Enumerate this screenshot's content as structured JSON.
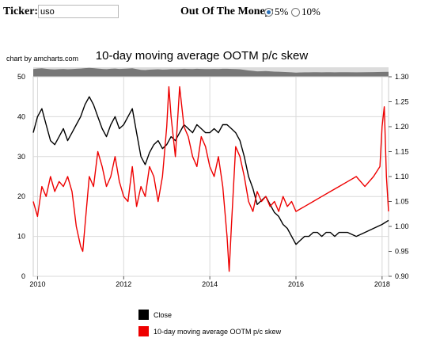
{
  "controls": {
    "ticker_label": "Ticker:",
    "ticker_value": "uso",
    "ootm_label": "Out Of The Money:",
    "options": [
      {
        "label": "5%",
        "selected": true
      },
      {
        "label": "10%",
        "selected": false
      }
    ]
  },
  "credit": "chart by amcharts.com",
  "chart_data": {
    "type": "line",
    "title": "10-day moving average OOTM p/c skew",
    "x_ticks": [
      "2010",
      "2012",
      "2014",
      "2016",
      "2018"
    ],
    "x_range": [
      2009.9,
      2018.15
    ],
    "y_left": {
      "ticks": [
        0,
        10,
        20,
        30,
        40,
        50
      ],
      "range": [
        0,
        50
      ]
    },
    "y_right": {
      "ticks": [
        0.9,
        0.95,
        1.0,
        1.05,
        1.1,
        1.15,
        1.2,
        1.25,
        1.3
      ],
      "range": [
        0.9,
        1.3
      ]
    },
    "grid": true,
    "legend_position": "bottom",
    "series": [
      {
        "name": "Close",
        "axis": "left",
        "color": "#000000",
        "x": [
          2009.9,
          2010.0,
          2010.1,
          2010.2,
          2010.3,
          2010.4,
          2010.5,
          2010.6,
          2010.7,
          2010.8,
          2010.9,
          2011.0,
          2011.1,
          2011.2,
          2011.3,
          2011.4,
          2011.5,
          2011.6,
          2011.7,
          2011.8,
          2011.9,
          2012.0,
          2012.1,
          2012.2,
          2012.3,
          2012.4,
          2012.5,
          2012.6,
          2012.7,
          2012.8,
          2012.9,
          2013.0,
          2013.1,
          2013.2,
          2013.3,
          2013.4,
          2013.5,
          2013.6,
          2013.7,
          2013.8,
          2013.9,
          2014.0,
          2014.1,
          2014.2,
          2014.3,
          2014.4,
          2014.5,
          2014.6,
          2014.7,
          2014.8,
          2014.9,
          2015.0,
          2015.1,
          2015.2,
          2015.3,
          2015.4,
          2015.5,
          2015.6,
          2015.7,
          2015.8,
          2015.9,
          2016.0,
          2016.1,
          2016.2,
          2016.3,
          2016.4,
          2016.5,
          2016.6,
          2016.7,
          2016.8,
          2016.9,
          2017.0,
          2017.2,
          2017.4,
          2017.6,
          2017.8,
          2018.0,
          2018.15
        ],
        "y": [
          36,
          40,
          42,
          38,
          34,
          33,
          35,
          37,
          34,
          36,
          38,
          40,
          43,
          45,
          43,
          40,
          37,
          35,
          38,
          40,
          37,
          38,
          40,
          42,
          36,
          30,
          28,
          31,
          33,
          34,
          32,
          33,
          35,
          34,
          36,
          38,
          37,
          36,
          38,
          37,
          36,
          36,
          37,
          36,
          38,
          38,
          37,
          36,
          34,
          30,
          25,
          22,
          18,
          19,
          20,
          18,
          16,
          15,
          13,
          12,
          10,
          8,
          9,
          10,
          10,
          11,
          11,
          10,
          11,
          11,
          10,
          11,
          11,
          10,
          11,
          12,
          13,
          14
        ]
      },
      {
        "name": "10-day moving average OOTM p/c skew",
        "axis": "right",
        "color": "#ee0000",
        "x": [
          2009.9,
          2010.0,
          2010.1,
          2010.2,
          2010.3,
          2010.4,
          2010.5,
          2010.6,
          2010.7,
          2010.8,
          2010.9,
          2011.0,
          2011.05,
          2011.1,
          2011.2,
          2011.3,
          2011.4,
          2011.5,
          2011.6,
          2011.7,
          2011.8,
          2011.9,
          2012.0,
          2012.1,
          2012.2,
          2012.3,
          2012.4,
          2012.5,
          2012.6,
          2012.7,
          2012.8,
          2012.9,
          2013.0,
          2013.05,
          2013.1,
          2013.2,
          2013.3,
          2013.4,
          2013.5,
          2013.6,
          2013.7,
          2013.8,
          2013.9,
          2014.0,
          2014.1,
          2014.2,
          2014.3,
          2014.4,
          2014.45,
          2014.5,
          2014.6,
          2014.7,
          2014.8,
          2014.9,
          2015.0,
          2015.1,
          2015.2,
          2015.3,
          2015.4,
          2015.5,
          2015.6,
          2015.7,
          2015.8,
          2015.9,
          2016.0,
          2016.2,
          2016.4,
          2016.6,
          2016.8,
          2017.0,
          2017.2,
          2017.4,
          2017.6,
          2017.8,
          2017.95,
          2018.0,
          2018.05,
          2018.1,
          2018.15
        ],
        "y": [
          1.05,
          1.02,
          1.08,
          1.06,
          1.1,
          1.07,
          1.09,
          1.08,
          1.1,
          1.07,
          1.0,
          0.96,
          0.95,
          1.0,
          1.1,
          1.08,
          1.15,
          1.12,
          1.08,
          1.1,
          1.14,
          1.09,
          1.06,
          1.05,
          1.12,
          1.04,
          1.08,
          1.06,
          1.12,
          1.1,
          1.05,
          1.1,
          1.2,
          1.28,
          1.22,
          1.14,
          1.28,
          1.2,
          1.18,
          1.14,
          1.12,
          1.18,
          1.16,
          1.12,
          1.1,
          1.14,
          1.08,
          0.98,
          0.91,
          1.0,
          1.16,
          1.14,
          1.1,
          1.05,
          1.03,
          1.07,
          1.05,
          1.06,
          1.04,
          1.05,
          1.03,
          1.06,
          1.04,
          1.05,
          1.03,
          1.04,
          1.05,
          1.06,
          1.07,
          1.08,
          1.09,
          1.1,
          1.08,
          1.1,
          1.12,
          1.2,
          1.24,
          1.1,
          1.03
        ]
      }
    ]
  }
}
